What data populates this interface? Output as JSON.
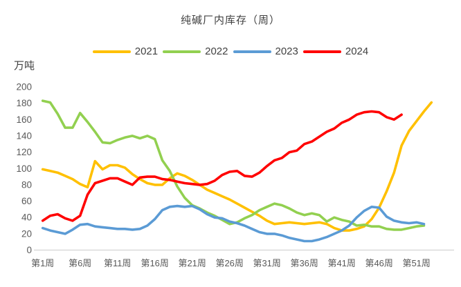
{
  "title": "纯碱厂内库存（周）",
  "y_axis": {
    "unit_label": "万吨",
    "min": 0,
    "max": 200,
    "step": 20,
    "ticks": [
      0,
      20,
      40,
      60,
      80,
      100,
      120,
      140,
      160,
      180,
      200
    ]
  },
  "x_axis": {
    "ticks": [
      {
        "week": 1,
        "label": "第1周"
      },
      {
        "week": 6,
        "label": "第6周"
      },
      {
        "week": 11,
        "label": "第11周"
      },
      {
        "week": 16,
        "label": "第16周"
      },
      {
        "week": 21,
        "label": "第21周"
      },
      {
        "week": 26,
        "label": "第26周"
      },
      {
        "week": 31,
        "label": "第31周"
      },
      {
        "week": 36,
        "label": "第36周"
      },
      {
        "week": 41,
        "label": "第41周"
      },
      {
        "week": 46,
        "label": "第46周"
      },
      {
        "week": 51,
        "label": "第51周"
      }
    ]
  },
  "chart_data": {
    "type": "line",
    "title": "纯碱厂内库存（周）",
    "ylabel": "万吨",
    "ylim": [
      0,
      200
    ],
    "grid": false,
    "legend_position": "top",
    "x_unit": "week-of-year, starting at week 1",
    "series": [
      {
        "name": "2021",
        "color": "#FFC000",
        "values": [
          99,
          97,
          95,
          91,
          87,
          81,
          77,
          109,
          99,
          104,
          104,
          101,
          93,
          87,
          82,
          80,
          80,
          88,
          94,
          91,
          86,
          80,
          74,
          70,
          66,
          62,
          57,
          52,
          47,
          42,
          36,
          32,
          33,
          34,
          33,
          32,
          33,
          34,
          32,
          27,
          24,
          24,
          26,
          29,
          38,
          52,
          72,
          95,
          128,
          146,
          158,
          170,
          181
        ]
      },
      {
        "name": "2022",
        "color": "#92D050",
        "values": [
          183,
          181,
          167,
          150,
          150,
          168,
          157,
          145,
          132,
          131,
          135,
          138,
          140,
          137,
          140,
          136,
          110,
          97,
          78,
          64,
          55,
          51,
          46,
          42,
          37,
          32,
          34,
          39,
          43,
          49,
          53,
          57,
          55,
          51,
          46,
          43,
          45,
          43,
          35,
          40,
          37,
          35,
          30,
          31,
          29,
          29,
          26,
          25,
          25,
          27,
          29,
          30
        ]
      },
      {
        "name": "2023",
        "color": "#5B9BD5",
        "values": [
          27,
          24,
          22,
          20,
          25,
          31,
          32,
          29,
          28,
          27,
          26,
          26,
          25,
          26,
          30,
          38,
          49,
          53,
          54,
          53,
          54,
          50,
          44,
          40,
          39,
          35,
          33,
          30,
          26,
          22,
          20,
          20,
          18,
          15,
          13,
          11,
          11,
          13,
          16,
          20,
          24,
          30,
          40,
          48,
          53,
          52,
          41,
          36,
          34,
          33,
          34,
          32
        ]
      },
      {
        "name": "2024",
        "color": "#FF0000",
        "values": [
          36,
          42,
          44,
          39,
          36,
          42,
          68,
          82,
          85,
          88,
          88,
          84,
          80,
          89,
          90,
          90,
          87,
          86,
          84,
          82,
          81,
          80,
          81,
          85,
          92,
          96,
          97,
          91,
          90,
          95,
          103,
          110,
          113,
          120,
          122,
          130,
          133,
          139,
          145,
          149,
          156,
          160,
          166,
          169,
          170,
          169,
          163,
          160,
          166
        ]
      }
    ]
  },
  "colors": {
    "axis_line": "#D9D9D9",
    "title_text": "#404040",
    "tick_text": "#595959"
  }
}
